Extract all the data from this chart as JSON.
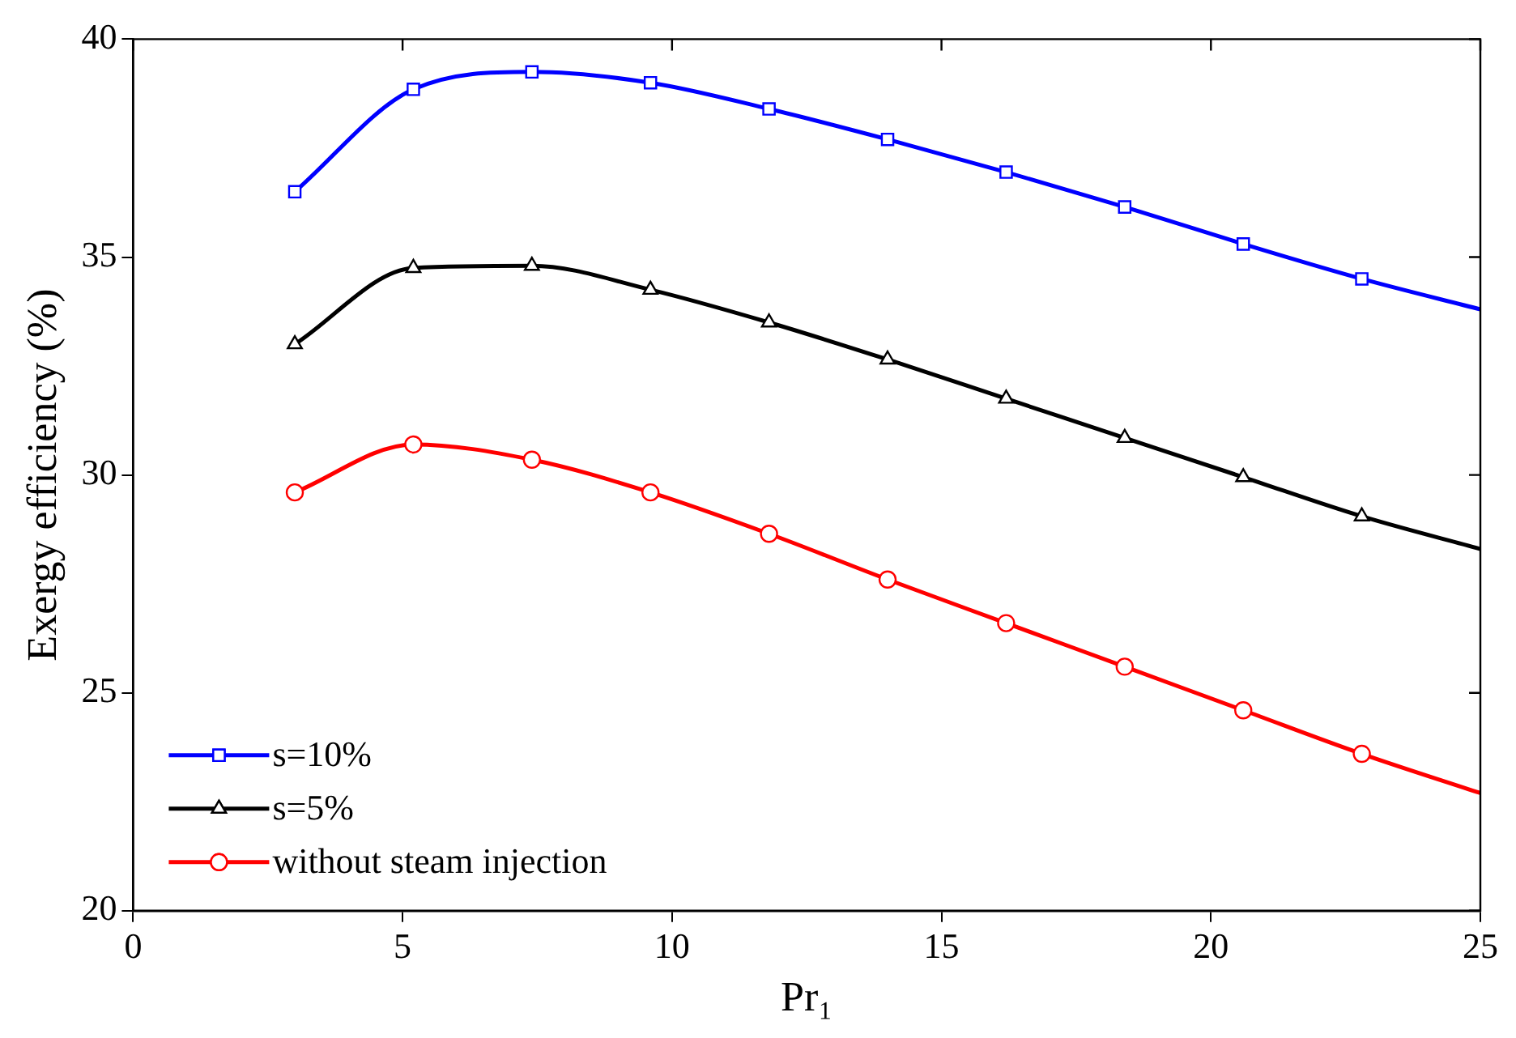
{
  "chart_data": {
    "type": "line",
    "xlabel": "Pr₁",
    "ylabel": "Exergy efficiency (%)",
    "xlim": [
      0,
      25
    ],
    "xticks": [
      0,
      5,
      10,
      15,
      20,
      25
    ],
    "ylim": [
      20,
      40
    ],
    "yticks": [
      20,
      25,
      30,
      35,
      40
    ],
    "grid": false,
    "legend": "bottom left",
    "line_style": "solid",
    "series": [
      {
        "name": "s=10%",
        "color": "#0000ff",
        "marker": "square",
        "x": [
          3,
          5.2,
          7.4,
          9.6,
          11.8,
          14,
          16.2,
          18.4,
          20.6,
          22.8,
          25
        ],
        "values": [
          36.5,
          38.85,
          39.25,
          39.0,
          38.4,
          37.7,
          36.95,
          36.15,
          35.3,
          34.5,
          33.8
        ]
      },
      {
        "name": "s=5%",
        "color": "#000000",
        "marker": "triangle",
        "x": [
          3,
          5.2,
          7.4,
          9.6,
          11.8,
          14,
          16.2,
          18.4,
          20.6,
          22.8,
          25
        ],
        "values": [
          33.0,
          34.75,
          34.8,
          34.25,
          33.5,
          32.65,
          31.75,
          30.85,
          29.95,
          29.05,
          28.3
        ]
      },
      {
        "name": "without steam injection",
        "color": "#ff0000",
        "marker": "circle",
        "x": [
          3,
          5.2,
          7.4,
          9.6,
          11.8,
          14,
          16.2,
          18.4,
          20.6,
          22.8,
          25
        ],
        "values": [
          29.6,
          30.7,
          30.35,
          29.6,
          28.65,
          27.6,
          26.6,
          25.6,
          24.6,
          23.6,
          22.7
        ]
      }
    ]
  }
}
